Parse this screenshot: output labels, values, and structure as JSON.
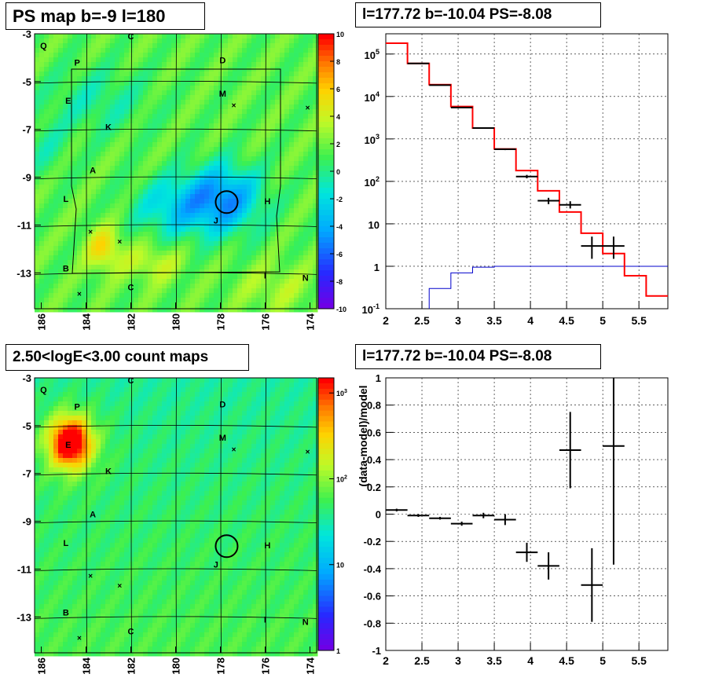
{
  "panels": {
    "top_left_title": "PS map b=-9 l=180",
    "top_right_title": "l=177.72 b=-10.04 PS=-8.08",
    "bottom_left_title": "2.50<logE<3.00 count maps",
    "bottom_right_title": "l=177.72 b=-10.04 PS=-8.08"
  },
  "chart_data": [
    {
      "type": "heatmap",
      "title": "PS map b=-9 l=180",
      "x_ticks": [
        "186",
        "184",
        "182",
        "180",
        "178",
        "176",
        "174"
      ],
      "y_ticks": [
        "-3",
        "-5",
        "-7",
        "-9",
        "-11",
        "-13"
      ],
      "xlim": [
        186.3,
        173.7
      ],
      "ylim": [
        -3,
        -14.5
      ],
      "colorbar": {
        "min": -10,
        "max": 10,
        "ticks": [
          "10",
          "8",
          "6",
          "4",
          "2",
          "0",
          "-2",
          "-4",
          "-6",
          "-8",
          "-10"
        ]
      },
      "sources": [
        {
          "label": "Q",
          "l": 185.9,
          "b": -3.5
        },
        {
          "label": "P",
          "l": 184.4,
          "b": -4.2
        },
        {
          "label": "C",
          "l": 182.0,
          "b": -3.1
        },
        {
          "label": "D",
          "l": 177.9,
          "b": -4.1
        },
        {
          "label": "M",
          "l": 177.9,
          "b": -5.5
        },
        {
          "label": "E",
          "l": 184.8,
          "b": -5.8
        },
        {
          "label": "K",
          "l": 183.0,
          "b": -6.9
        },
        {
          "label": "A",
          "l": 183.7,
          "b": -8.7
        },
        {
          "label": "L",
          "l": 184.9,
          "b": -9.9
        },
        {
          "label": "H",
          "l": 175.9,
          "b": -10.0
        },
        {
          "label": "J",
          "l": 178.2,
          "b": -10.8
        },
        {
          "label": "B",
          "l": 184.9,
          "b": -12.8
        },
        {
          "label": "C",
          "l": 182.0,
          "b": -13.6
        },
        {
          "label": "I",
          "l": 176.0,
          "b": -13.1
        },
        {
          "label": "N",
          "l": 174.2,
          "b": -13.2
        }
      ],
      "crosses": [
        {
          "l": 177.4,
          "b": -6.0
        },
        {
          "l": 174.1,
          "b": -6.1
        },
        {
          "l": 183.8,
          "b": -11.3
        },
        {
          "l": 182.5,
          "b": -11.7
        },
        {
          "l": 184.3,
          "b": -13.9
        }
      ],
      "circle": {
        "l": 177.72,
        "b": -10.04
      }
    },
    {
      "type": "line",
      "title": "l=177.72 b=-10.04 PS=-8.08",
      "y_scale": "log",
      "xlim": [
        2.0,
        5.9
      ],
      "ylim": [
        0.1,
        300000
      ],
      "x_ticks": [
        "2",
        "2.5",
        "3",
        "3.5",
        "4",
        "4.5",
        "5",
        "5.5"
      ],
      "y_ticks": [
        "10^-1",
        "1",
        "10",
        "10^2",
        "10^3",
        "10^4",
        "10^5"
      ],
      "model_step": {
        "edges": [
          2.0,
          2.3,
          2.6,
          2.9,
          3.2,
          3.5,
          3.8,
          4.1,
          4.4,
          4.7,
          5.0,
          5.3,
          5.6,
          5.9
        ],
        "values": [
          180000,
          60000,
          19000,
          5800,
          1800,
          580,
          180,
          60,
          19,
          6,
          2,
          0.6,
          0.2
        ]
      },
      "background_step": {
        "edges": [
          2.6,
          2.9,
          3.2,
          3.5,
          3.8,
          4.1,
          4.4,
          4.7,
          5.0,
          5.3,
          5.6,
          5.9
        ],
        "values": [
          0.3,
          0.7,
          0.95,
          1,
          1,
          1,
          1,
          1,
          1,
          1,
          1
        ]
      },
      "data_points": [
        {
          "x": 2.45,
          "y": 60000,
          "ylo": 59000,
          "yhi": 61000
        },
        {
          "x": 2.75,
          "y": 18500,
          "ylo": 18300,
          "yhi": 18700
        },
        {
          "x": 3.05,
          "y": 5500,
          "ylo": 5400,
          "yhi": 5600
        },
        {
          "x": 3.35,
          "y": 1800,
          "ylo": 1750,
          "yhi": 1850
        },
        {
          "x": 3.65,
          "y": 570,
          "ylo": 545,
          "yhi": 595
        },
        {
          "x": 3.95,
          "y": 130,
          "ylo": 118,
          "yhi": 142
        },
        {
          "x": 4.25,
          "y": 35,
          "ylo": 29,
          "yhi": 41
        },
        {
          "x": 4.55,
          "y": 28,
          "ylo": 23,
          "yhi": 34
        },
        {
          "x": 4.85,
          "y": 3,
          "ylo": 1.5,
          "yhi": 5
        },
        {
          "x": 5.15,
          "y": 3,
          "ylo": 1.5,
          "yhi": 5
        }
      ]
    },
    {
      "type": "heatmap",
      "title": "2.50<logE<3.00 count maps",
      "x_ticks": [
        "186",
        "184",
        "182",
        "180",
        "178",
        "176",
        "174"
      ],
      "y_ticks": [
        "-3",
        "-5",
        "-7",
        "-9",
        "-11",
        "-13"
      ],
      "colorbar": {
        "scale": "log",
        "min": 1,
        "max": 1500,
        "ticks": [
          "10^3",
          "10^2",
          "10",
          "1"
        ]
      },
      "hotspot": {
        "l": 184.7,
        "b": -5.7
      }
    },
    {
      "type": "scatter",
      "title": "l=177.72 b=-10.04 PS=-8.08",
      "ylabel": "(data-model)/model",
      "xlim": [
        2.0,
        5.9
      ],
      "ylim": [
        -1,
        1
      ],
      "x_ticks": [
        "2",
        "2.5",
        "3",
        "3.5",
        "4",
        "4.5",
        "5",
        "5.5"
      ],
      "y_ticks": [
        "1",
        "0.8",
        "0.6",
        "0.4",
        "0.2",
        "0",
        "-0.2",
        "-0.4",
        "-0.6",
        "-0.8",
        "-1"
      ],
      "points": [
        {
          "x": 2.15,
          "y": 0.03,
          "err": 0.01
        },
        {
          "x": 2.45,
          "y": -0.01,
          "err": 0.01
        },
        {
          "x": 2.75,
          "y": -0.03,
          "err": 0.01
        },
        {
          "x": 3.05,
          "y": -0.07,
          "err": 0.015
        },
        {
          "x": 3.35,
          "y": -0.01,
          "err": 0.02
        },
        {
          "x": 3.65,
          "y": -0.04,
          "err": 0.04
        },
        {
          "x": 3.95,
          "y": -0.28,
          "err": 0.07
        },
        {
          "x": 4.25,
          "y": -0.38,
          "err": 0.1
        },
        {
          "x": 4.55,
          "y": 0.47,
          "err": 0.28
        },
        {
          "x": 4.85,
          "y": -0.52,
          "err": 0.27
        },
        {
          "x": 5.15,
          "y": 0.5,
          "err": 0.87
        }
      ]
    }
  ]
}
